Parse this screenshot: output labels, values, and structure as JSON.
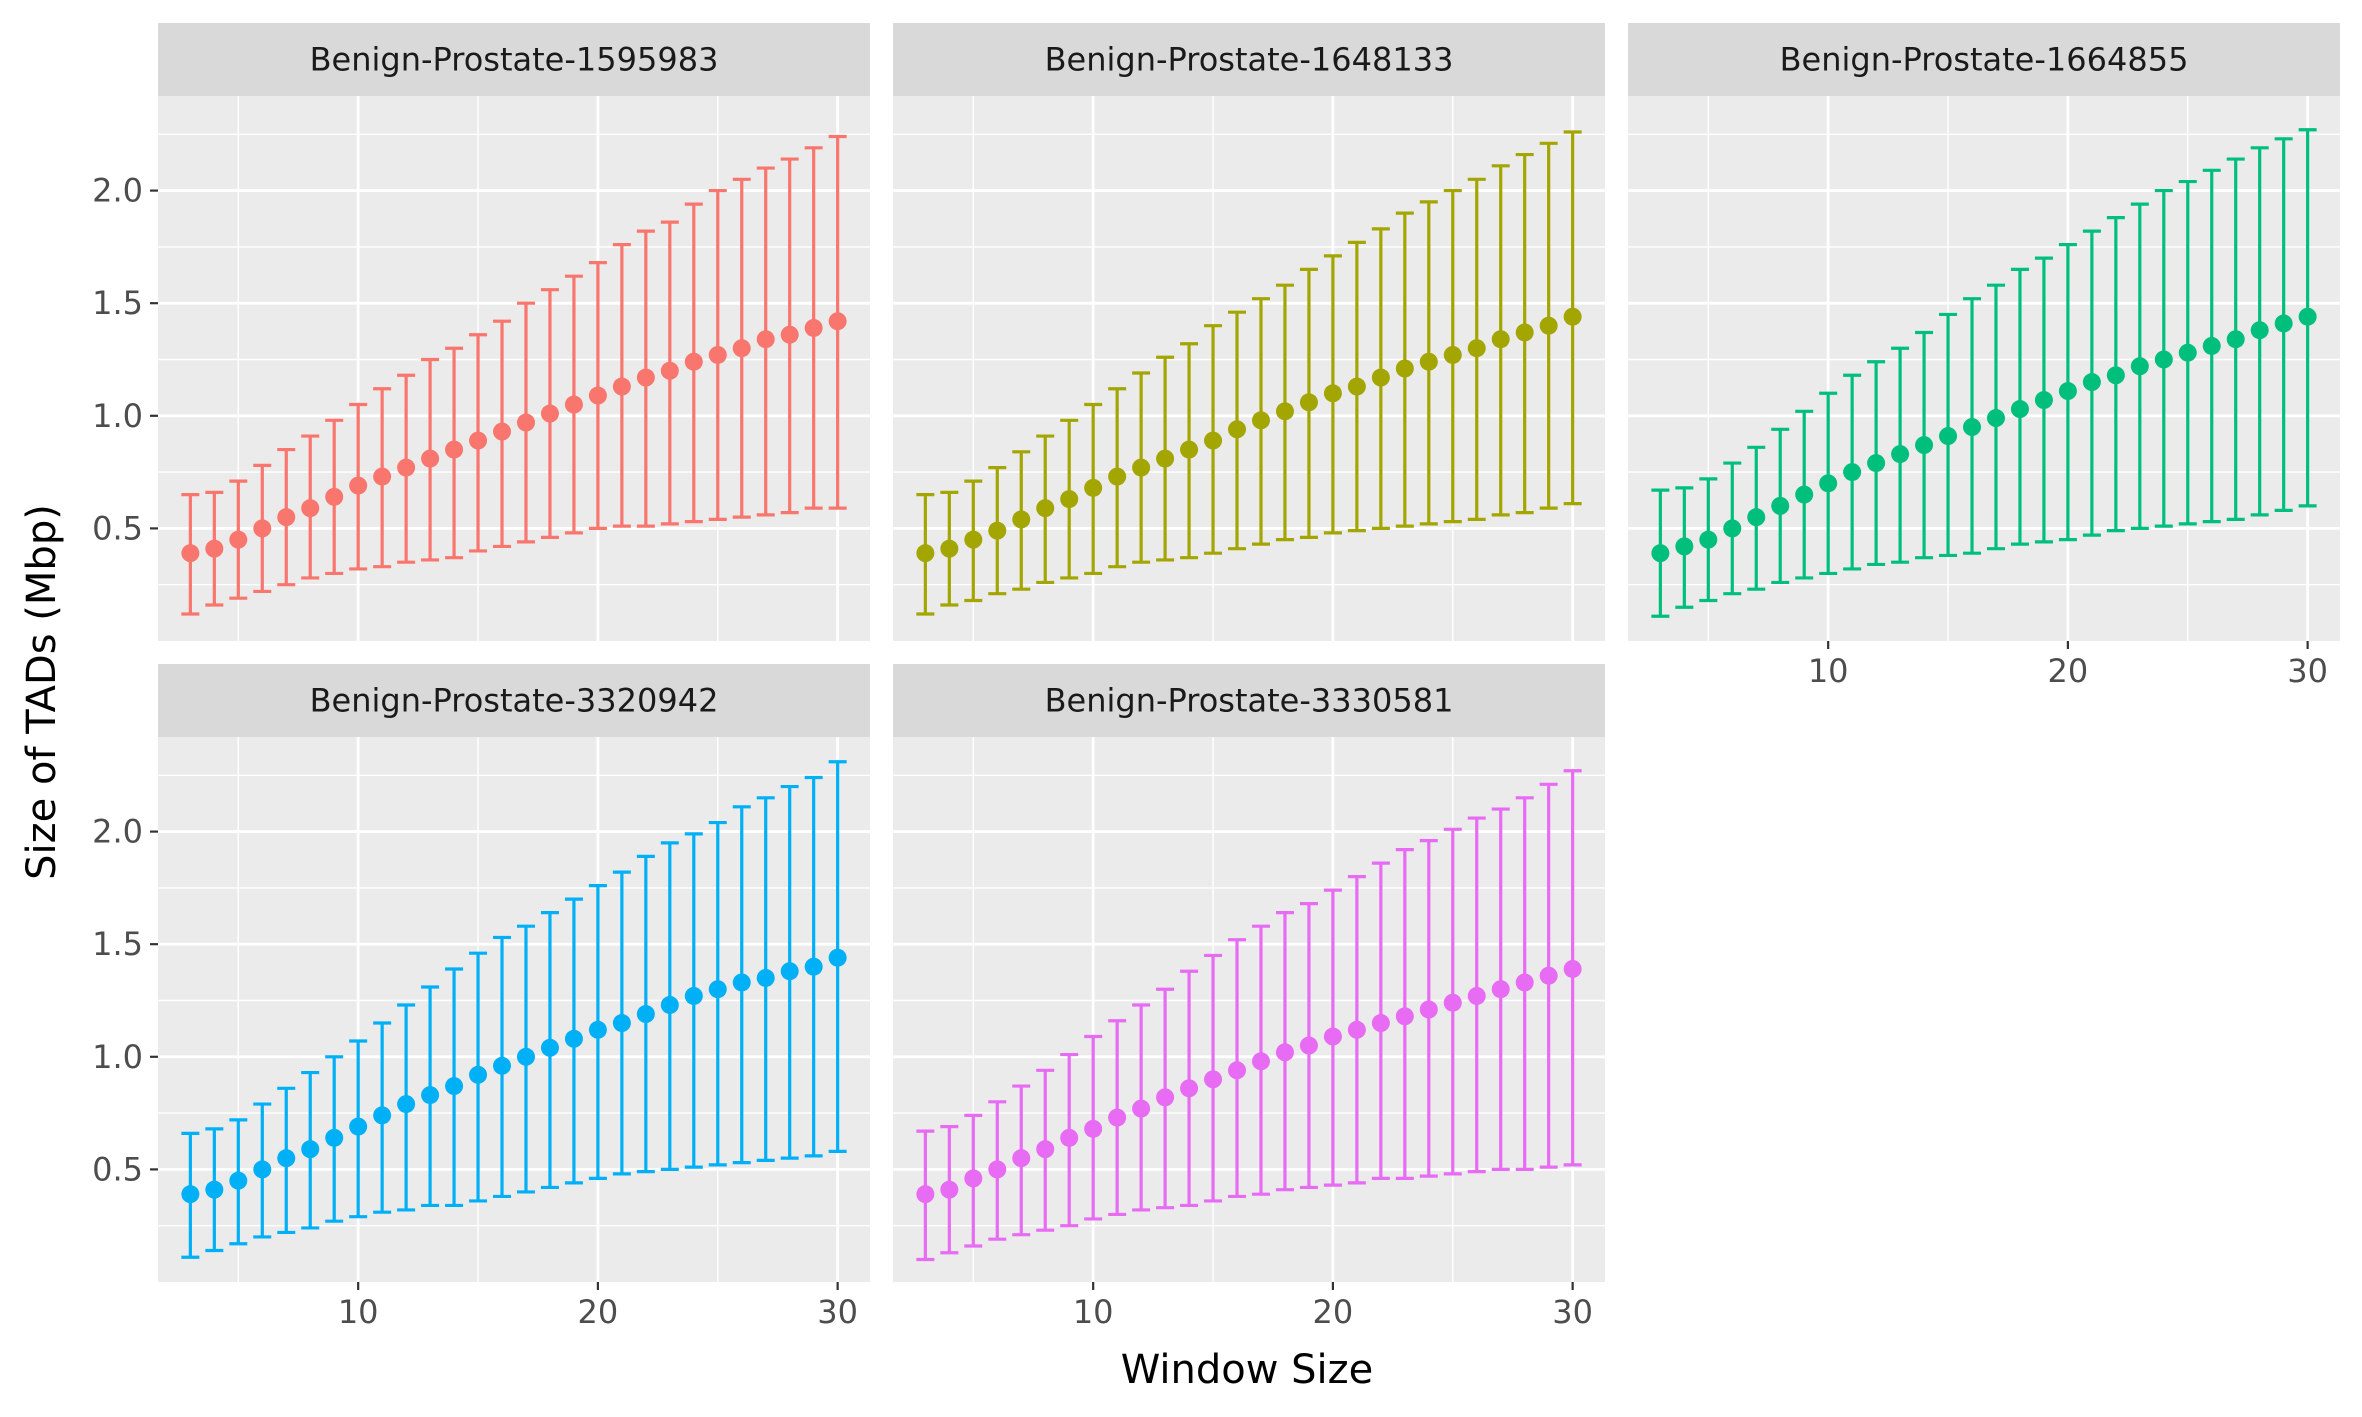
{
  "chart_data": {
    "type": "scatter",
    "subtype": "point-with-errorbars-faceted",
    "xlabel": "Window Size",
    "ylabel": "Size of TADs (Mbp)",
    "x_ticks": [
      10,
      20,
      30
    ],
    "y_ticks": [
      0.5,
      1.0,
      1.5,
      2.0
    ],
    "y_tick_labels": [
      "0.5",
      "1.0",
      "1.5",
      "2.0"
    ],
    "xlim": [
      1.65,
      31.35
    ],
    "ylim": [
      0.0,
      2.42
    ],
    "grid": true,
    "legend": "none",
    "x": [
      3,
      4,
      5,
      6,
      7,
      8,
      9,
      10,
      11,
      12,
      13,
      14,
      15,
      16,
      17,
      18,
      19,
      20,
      21,
      22,
      23,
      24,
      25,
      26,
      27,
      28,
      29,
      30
    ],
    "facets": [
      {
        "name": "Benign-Prostate-1595983",
        "color": "#F8766D",
        "mean": [
          0.39,
          0.41,
          0.45,
          0.5,
          0.55,
          0.59,
          0.64,
          0.69,
          0.73,
          0.77,
          0.81,
          0.85,
          0.89,
          0.93,
          0.97,
          1.01,
          1.05,
          1.09,
          1.13,
          1.17,
          1.2,
          1.24,
          1.27,
          1.3,
          1.34,
          1.36,
          1.39,
          1.42
        ],
        "lower": [
          0.12,
          0.16,
          0.19,
          0.22,
          0.25,
          0.28,
          0.3,
          0.32,
          0.33,
          0.35,
          0.36,
          0.37,
          0.4,
          0.42,
          0.44,
          0.46,
          0.48,
          0.5,
          0.51,
          0.51,
          0.52,
          0.53,
          0.54,
          0.55,
          0.56,
          0.57,
          0.59,
          0.59
        ],
        "upper": [
          0.65,
          0.66,
          0.71,
          0.78,
          0.85,
          0.91,
          0.98,
          1.05,
          1.12,
          1.18,
          1.25,
          1.3,
          1.36,
          1.42,
          1.5,
          1.56,
          1.62,
          1.68,
          1.76,
          1.82,
          1.86,
          1.94,
          2.0,
          2.05,
          2.1,
          2.14,
          2.19,
          2.24
        ]
      },
      {
        "name": "Benign-Prostate-1648133",
        "color": "#A3A500",
        "mean": [
          0.39,
          0.41,
          0.45,
          0.49,
          0.54,
          0.59,
          0.63,
          0.68,
          0.73,
          0.77,
          0.81,
          0.85,
          0.89,
          0.94,
          0.98,
          1.02,
          1.06,
          1.1,
          1.13,
          1.17,
          1.21,
          1.24,
          1.27,
          1.3,
          1.34,
          1.37,
          1.4,
          1.44
        ],
        "lower": [
          0.12,
          0.16,
          0.18,
          0.21,
          0.23,
          0.26,
          0.28,
          0.3,
          0.33,
          0.35,
          0.36,
          0.37,
          0.39,
          0.41,
          0.43,
          0.45,
          0.46,
          0.48,
          0.49,
          0.5,
          0.51,
          0.52,
          0.53,
          0.54,
          0.56,
          0.57,
          0.59,
          0.61
        ],
        "upper": [
          0.65,
          0.66,
          0.71,
          0.77,
          0.84,
          0.91,
          0.98,
          1.05,
          1.12,
          1.19,
          1.26,
          1.32,
          1.4,
          1.46,
          1.52,
          1.58,
          1.65,
          1.71,
          1.77,
          1.83,
          1.9,
          1.95,
          2.0,
          2.05,
          2.11,
          2.16,
          2.21,
          2.26
        ]
      },
      {
        "name": "Benign-Prostate-1664855",
        "color": "#00BF7D",
        "mean": [
          0.39,
          0.42,
          0.45,
          0.5,
          0.55,
          0.6,
          0.65,
          0.7,
          0.75,
          0.79,
          0.83,
          0.87,
          0.91,
          0.95,
          0.99,
          1.03,
          1.07,
          1.11,
          1.15,
          1.18,
          1.22,
          1.25,
          1.28,
          1.31,
          1.34,
          1.38,
          1.41,
          1.44
        ],
        "lower": [
          0.11,
          0.15,
          0.18,
          0.21,
          0.23,
          0.26,
          0.28,
          0.3,
          0.32,
          0.34,
          0.35,
          0.37,
          0.38,
          0.39,
          0.41,
          0.43,
          0.44,
          0.45,
          0.47,
          0.49,
          0.5,
          0.51,
          0.52,
          0.53,
          0.54,
          0.56,
          0.58,
          0.6
        ],
        "upper": [
          0.67,
          0.68,
          0.72,
          0.79,
          0.86,
          0.94,
          1.02,
          1.1,
          1.18,
          1.24,
          1.3,
          1.37,
          1.45,
          1.52,
          1.58,
          1.65,
          1.7,
          1.76,
          1.82,
          1.88,
          1.94,
          2.0,
          2.04,
          2.09,
          2.14,
          2.19,
          2.23,
          2.27
        ]
      },
      {
        "name": "Benign-Prostate-3320942",
        "color": "#00B0F6",
        "mean": [
          0.39,
          0.41,
          0.45,
          0.5,
          0.55,
          0.59,
          0.64,
          0.69,
          0.74,
          0.79,
          0.83,
          0.87,
          0.92,
          0.96,
          1.0,
          1.04,
          1.08,
          1.12,
          1.15,
          1.19,
          1.23,
          1.27,
          1.3,
          1.33,
          1.35,
          1.38,
          1.4,
          1.44
        ],
        "lower": [
          0.11,
          0.14,
          0.17,
          0.2,
          0.22,
          0.24,
          0.27,
          0.29,
          0.31,
          0.32,
          0.34,
          0.34,
          0.36,
          0.38,
          0.4,
          0.42,
          0.44,
          0.46,
          0.48,
          0.49,
          0.5,
          0.51,
          0.52,
          0.53,
          0.54,
          0.55,
          0.56,
          0.58
        ],
        "upper": [
          0.66,
          0.68,
          0.72,
          0.79,
          0.86,
          0.93,
          1.0,
          1.07,
          1.15,
          1.23,
          1.31,
          1.39,
          1.46,
          1.53,
          1.58,
          1.64,
          1.7,
          1.76,
          1.82,
          1.89,
          1.95,
          1.99,
          2.04,
          2.11,
          2.15,
          2.2,
          2.24,
          2.31
        ]
      },
      {
        "name": "Benign-Prostate-3330581",
        "color": "#E76BF3",
        "mean": [
          0.39,
          0.41,
          0.46,
          0.5,
          0.55,
          0.59,
          0.64,
          0.68,
          0.73,
          0.77,
          0.82,
          0.86,
          0.9,
          0.94,
          0.98,
          1.02,
          1.05,
          1.09,
          1.12,
          1.15,
          1.18,
          1.21,
          1.24,
          1.27,
          1.3,
          1.33,
          1.36,
          1.39
        ],
        "lower": [
          0.1,
          0.13,
          0.16,
          0.19,
          0.21,
          0.23,
          0.25,
          0.28,
          0.3,
          0.32,
          0.33,
          0.34,
          0.36,
          0.38,
          0.39,
          0.41,
          0.42,
          0.43,
          0.44,
          0.46,
          0.46,
          0.47,
          0.48,
          0.49,
          0.5,
          0.5,
          0.51,
          0.52
        ],
        "upper": [
          0.67,
          0.69,
          0.74,
          0.8,
          0.87,
          0.94,
          1.01,
          1.09,
          1.16,
          1.23,
          1.3,
          1.38,
          1.45,
          1.52,
          1.58,
          1.64,
          1.68,
          1.74,
          1.8,
          1.86,
          1.92,
          1.96,
          2.01,
          2.06,
          2.1,
          2.15,
          2.21,
          2.27
        ]
      }
    ]
  }
}
